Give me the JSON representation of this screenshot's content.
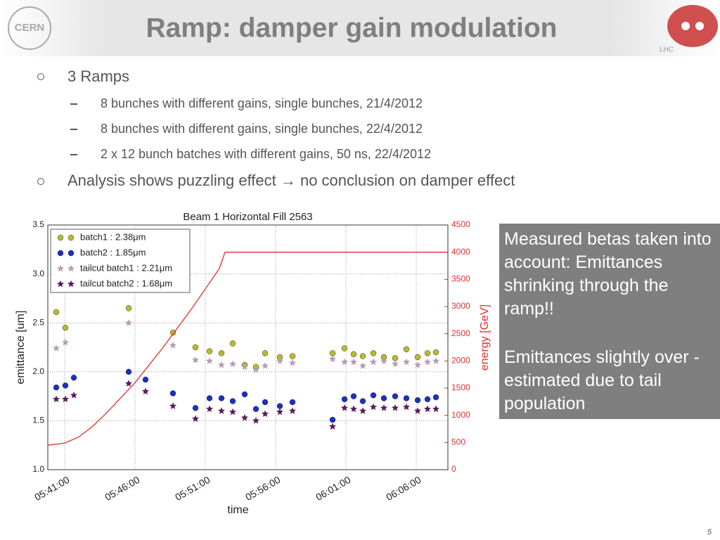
{
  "header": {
    "title": "Ramp: damper gain modulation",
    "logo_left": "CERN",
    "logo_right": "LHC"
  },
  "bullets": [
    {
      "text": "3 Ramps",
      "subitems": [
        "8 bunches with different gains, single bunches, 21/4/2012",
        "8 bunches with different gains, single bunches, 22/4/2012",
        "2  x 12 bunch batches with different gains, 50 ns, 22/4/2012"
      ]
    },
    {
      "text": "Analysis shows puzzling effect →  no conclusion on damper effect",
      "subitems": []
    }
  ],
  "callout": [
    "Measured betas taken into account: Emittances shrinking through the ramp!!",
    "Emittances slightly over -estimated due to tail population"
  ],
  "page_number": "5",
  "chart_data": {
    "type": "scatter",
    "title": "Beam 1 Horizontal Fill 2563",
    "x_label": "time",
    "y_label": "emittance [um]",
    "y2_label": "energy [GeV]",
    "xlim": [
      339.8,
      368.25
    ],
    "xticks": [
      {
        "value": 341,
        "label": "05:41:00"
      },
      {
        "value": 346,
        "label": "05:46:00"
      },
      {
        "value": 351,
        "label": "05:51:00"
      },
      {
        "value": 356,
        "label": "05:56:00"
      },
      {
        "value": 361,
        "label": "06:01:00"
      },
      {
        "value": 366,
        "label": "06:06:00"
      }
    ],
    "ylim": [
      1.0,
      3.5
    ],
    "yticks": [
      {
        "value": 1,
        "label": "1.0"
      },
      1.5,
      {
        "value": 2,
        "label": "2.0"
      },
      2.5,
      {
        "value": 3,
        "label": "3.0"
      },
      3.5
    ],
    "y2lim": [
      0,
      4500
    ],
    "y2ticks": [
      0,
      500,
      1000,
      1500,
      2000,
      2500,
      3000,
      3500,
      4000,
      4500
    ],
    "grid": true,
    "legend": "upper left",
    "series": [
      {
        "name": "batch1 : 2.38μm",
        "marker": "circle",
        "color": "#b8bb2c",
        "x": [
          340.4,
          341.05,
          345.55,
          348.7,
          350.3,
          351.3,
          352.15,
          352.95,
          353.8,
          354.6,
          355.25,
          356.3,
          357.2,
          360.05,
          360.9,
          361.55,
          362.2,
          362.95,
          363.7,
          364.5,
          365.3,
          366.1,
          366.8,
          367.4
        ],
        "values": [
          2.61,
          2.45,
          2.65,
          2.4,
          2.25,
          2.21,
          2.19,
          2.29,
          2.07,
          2.05,
          2.19,
          2.15,
          2.16,
          2.19,
          2.24,
          2.18,
          2.16,
          2.19,
          2.15,
          2.14,
          2.23,
          2.15,
          2.19,
          2.2
        ]
      },
      {
        "name": "batch2 : 1.85μm",
        "marker": "circle",
        "color": "#1a2fc8",
        "x": [
          340.4,
          341.05,
          341.65,
          345.55,
          346.75,
          348.7,
          350.3,
          351.3,
          352.15,
          352.95,
          353.8,
          354.6,
          355.25,
          356.3,
          357.2,
          360.05,
          360.9,
          361.55,
          362.2,
          362.95,
          363.7,
          364.5,
          365.3,
          366.1,
          366.8,
          367.4
        ],
        "values": [
          1.84,
          1.86,
          1.94,
          2.0,
          1.92,
          1.78,
          1.63,
          1.73,
          1.73,
          1.7,
          1.77,
          1.62,
          1.69,
          1.65,
          1.69,
          1.51,
          1.72,
          1.75,
          1.7,
          1.76,
          1.73,
          1.75,
          1.73,
          1.71,
          1.72,
          1.74
        ]
      },
      {
        "name": "tailcut batch1 : 2.21μm",
        "marker": "star",
        "color": "#b89ab8",
        "x": [
          340.4,
          341.05,
          345.55,
          348.7,
          350.3,
          351.3,
          352.15,
          352.95,
          353.8,
          354.6,
          355.25,
          356.3,
          357.2,
          360.05,
          360.9,
          361.55,
          362.2,
          362.95,
          363.7,
          364.5,
          365.3,
          366.1,
          366.8,
          367.4
        ],
        "values": [
          2.24,
          2.3,
          2.5,
          2.27,
          2.12,
          2.11,
          2.07,
          2.08,
          2.05,
          2.02,
          2.06,
          2.11,
          2.09,
          2.13,
          2.1,
          2.1,
          2.06,
          2.1,
          2.11,
          2.08,
          2.1,
          2.07,
          2.1,
          2.11
        ]
      },
      {
        "name": "tailcut batch2 : 1.68μm",
        "marker": "star",
        "color": "#5a1a5a",
        "x": [
          340.4,
          341.05,
          341.65,
          345.55,
          346.75,
          348.7,
          350.3,
          351.3,
          352.15,
          352.95,
          353.8,
          354.6,
          355.25,
          356.3,
          357.2,
          360.05,
          360.9,
          361.55,
          362.2,
          362.95,
          363.7,
          364.5,
          365.3,
          366.1,
          366.8,
          367.4
        ],
        "values": [
          1.72,
          1.72,
          1.76,
          1.88,
          1.8,
          1.65,
          1.52,
          1.62,
          1.6,
          1.59,
          1.53,
          1.5,
          1.57,
          1.59,
          1.6,
          1.44,
          1.63,
          1.62,
          1.6,
          1.64,
          1.63,
          1.63,
          1.64,
          1.6,
          1.62,
          1.62
        ]
      },
      {
        "marker": "line",
        "axis": "y2",
        "color": "#e03030",
        "x": [
          339.8,
          341,
          342,
          343,
          344,
          346,
          348,
          350,
          352,
          352.4,
          368.25
        ],
        "values": [
          450,
          490,
          600,
          800,
          1050,
          1600,
          2250,
          2950,
          3700,
          4000,
          4000
        ]
      }
    ]
  }
}
